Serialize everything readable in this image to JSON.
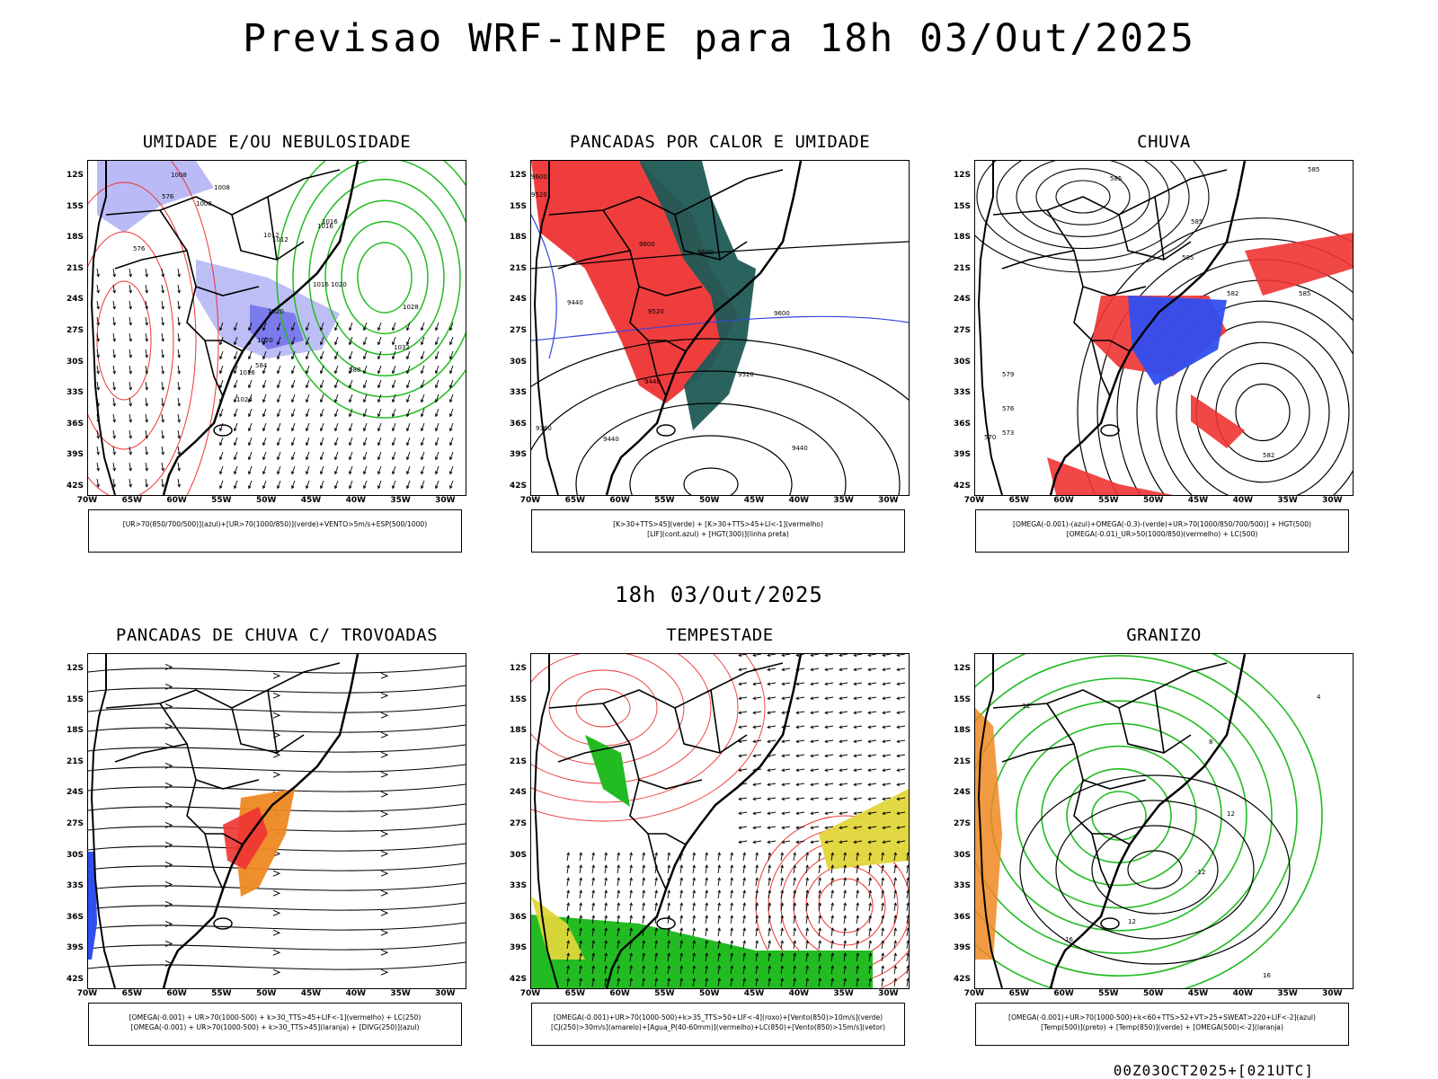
{
  "main_title": "Previsao WRF-INPE  para 18h 03/Out/2025",
  "mid_date": "18h 03/Out/2025",
  "footer_stamp": "00Z03OCT2025+[021UTC]",
  "axes": {
    "lat_ticks": [
      "12S",
      "15S",
      "18S",
      "21S",
      "24S",
      "27S",
      "30S",
      "33S",
      "36S",
      "39S",
      "42S"
    ],
    "lon_ticks": [
      "70W",
      "65W",
      "60W",
      "55W",
      "50W",
      "45W",
      "40W",
      "35W",
      "30W"
    ]
  },
  "panels": [
    {
      "id": "umidade",
      "title": "UMIDADE E/OU NEBULOSIDADE",
      "legend": [
        "[UR>70(850/700/500)](azul)+[UR>70(1000/850)](verde)+VENTO>5m/s+ESP(500/1000)"
      ],
      "contour_labels": [
        "1008",
        "1008",
        "1008",
        "1012",
        "1016",
        "1016",
        "1020",
        "1024",
        "1028",
        "1032",
        "1016",
        "1012",
        "1020",
        "1020",
        "1016",
        "576",
        "576",
        "584",
        "588"
      ]
    },
    {
      "id": "pancadas-calor",
      "title": "PANCADAS POR CALOR E UMIDADE",
      "legend": [
        "[K>30+TTS>45](verde) + [K>30+TTS>45+LI<-1](vermelho)",
        "[LIF](cont.azul) + [HGT(300)](linha preta)"
      ],
      "contour_labels": [
        "9520",
        "9600",
        "9600",
        "9440",
        "9520",
        "9600",
        "9520",
        "9440",
        "9360",
        "9440",
        "9440",
        "9600"
      ]
    },
    {
      "id": "chuva",
      "title": "CHUVA",
      "legend": [
        "[OMEGA(-0.001)-(azul)+OMEGA(-0.3)-(verde)+UR>70(1000/850/700/500)] + HGT(500)",
        "[OMEGA(-0.01)_UR>50(1000/850)(vermelho) + LC(500)"
      ],
      "contour_labels": [
        "585",
        "585",
        "585",
        "585",
        "582",
        "579",
        "576",
        "573",
        "570",
        "585",
        "582"
      ]
    },
    {
      "id": "pancadas-trovoadas",
      "title": "PANCADAS DE CHUVA C/ TROVOADAS",
      "legend": [
        "[OMEGA(-0.001) + UR>70(1000-500) + k>30_TTS>45+LIF<-1](vermelho) + LC(250)",
        "[OMEGA(-0.001) + UR>70(1000-500) + k>30_TTS>45](laranja) + [DIVG(250)](azul)"
      ],
      "contour_labels": []
    },
    {
      "id": "tempestade",
      "title": "TEMPESTADE",
      "legend": [
        "[OMEGA(-0.001)+UR>70(1000-500)+k>35_TTS>50+LIF<-4](roxo)+[Vento(850)>10m/s](verde)",
        "[CJ(250)>30m/s](amarelo)+[Agua_P(40-60mm)](vermelho)+LC(850)+[Vento(850)>15m/s](vetor)"
      ],
      "contour_labels": []
    },
    {
      "id": "granizo",
      "title": "GRANIZO",
      "legend": [
        "[OMEGA(-0.001)+UR>70(1000-500)+k<60+TTS>52+VT>25+SWEAT>220+LIF<-2](azul)",
        "[Temp(500)](preto) + [Temp(850)](verde) + [OMEGA(500)<-2](laranja)"
      ],
      "contour_labels": [
        "-12",
        "-12",
        "12",
        "16",
        "16",
        "12",
        "8",
        "4"
      ]
    }
  ]
}
